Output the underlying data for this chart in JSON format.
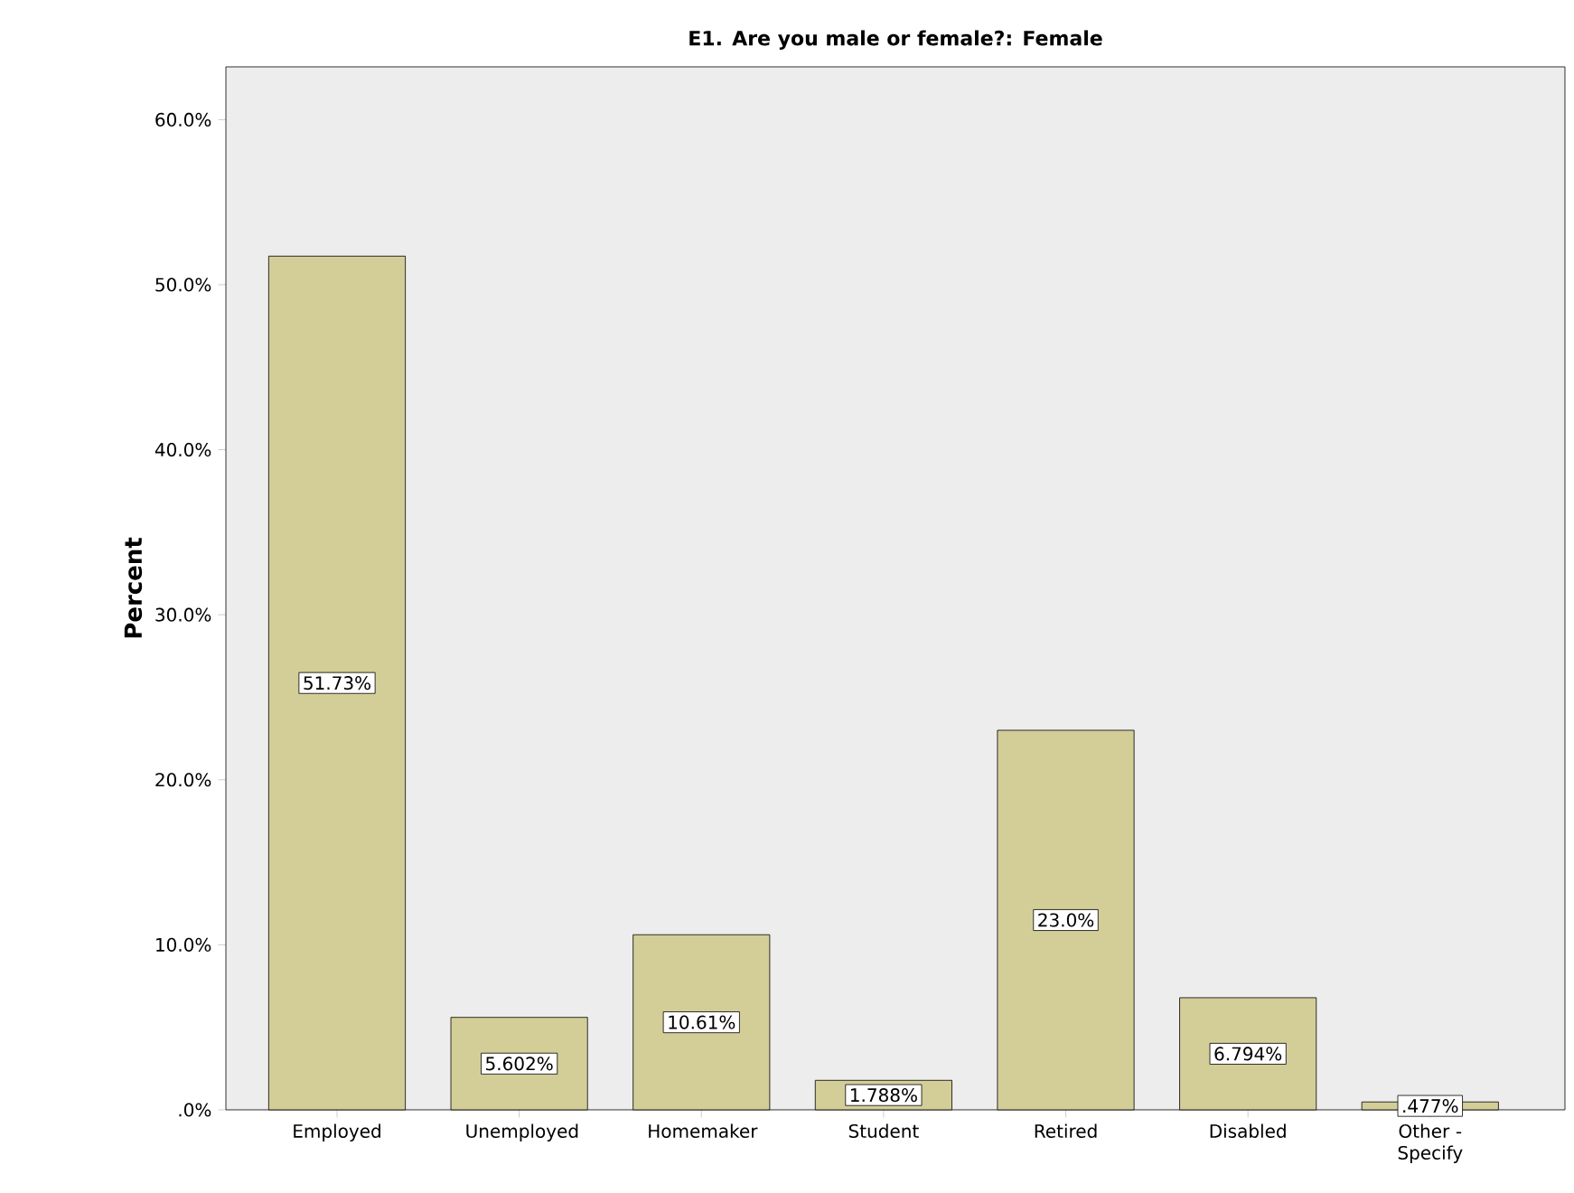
{
  "chart_data": {
    "type": "bar",
    "title": "E1. Are you male or female?: Female",
    "ylabel": "Percent",
    "categories": [
      "Employed",
      "Unemployed",
      "Homemaker",
      "Student",
      "Retired",
      "Disabled",
      "Other - Specify"
    ],
    "values": [
      51.73,
      5.602,
      10.61,
      1.788,
      23.0,
      6.794,
      0.477
    ],
    "value_labels": [
      "51.73%",
      "5.602%",
      "10.61%",
      "1.788%",
      "23.0%",
      "6.794%",
      ".477%"
    ],
    "color": "#d3cd98",
    "ylim": [
      0,
      63.2
    ],
    "yticks": [
      {
        "value": 0,
        "label": ".0%"
      },
      {
        "value": 10,
        "label": "10.0%"
      },
      {
        "value": 20,
        "label": "20.0%"
      },
      {
        "value": 30,
        "label": "30.0%"
      },
      {
        "value": 40,
        "label": "40.0%"
      },
      {
        "value": 50,
        "label": "50.0%"
      },
      {
        "value": 60,
        "label": "60.0%"
      }
    ],
    "grid": false
  }
}
